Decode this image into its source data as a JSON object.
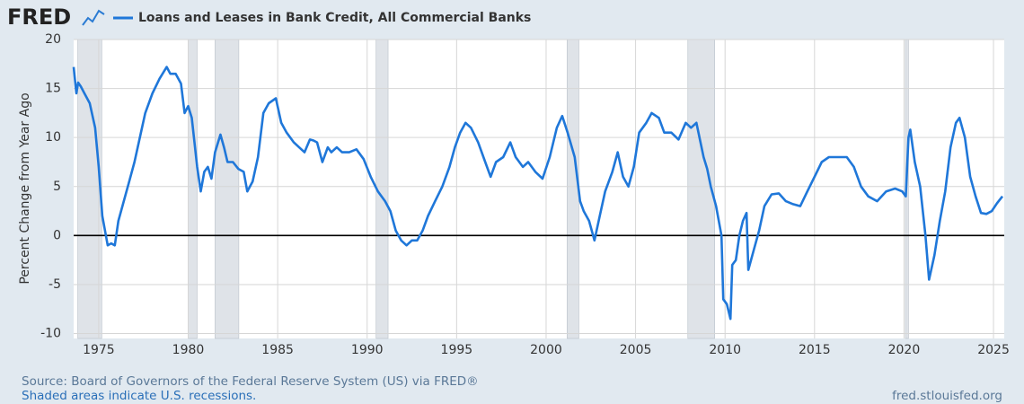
{
  "chart_data": {
    "type": "line",
    "brand": "FRED",
    "y_label": "Percent Change from Year Ago",
    "source": "Source: Board of Governors of the Federal Reserve System (US) via FRED®",
    "note": "Shaded areas indicate U.S. recessions.",
    "website": "fred.stlouisfed.org",
    "xlim": [
      1973.6,
      2025.6
    ],
    "xticks": [
      1975,
      1980,
      1985,
      1990,
      1995,
      2000,
      2005,
      2010,
      2015,
      2020,
      2025
    ],
    "ylim": [
      -10.5,
      20
    ],
    "yticks": [
      -10,
      -5,
      0,
      5,
      10,
      15,
      20
    ],
    "grid": true,
    "recession_color": "#dfe3e8",
    "recessions": [
      [
        1973.83,
        1975.17
      ],
      [
        1980.0,
        1980.5
      ],
      [
        1981.5,
        1982.83
      ],
      [
        1990.5,
        1991.17
      ],
      [
        2001.17,
        2001.83
      ],
      [
        2007.92,
        2009.42
      ],
      [
        2020.08,
        2020.25
      ]
    ],
    "x": [
      1973.6,
      1973.75,
      1973.85,
      1974.0,
      1974.2,
      1974.5,
      1974.8,
      1975.0,
      1975.2,
      1975.5,
      1975.7,
      1975.9,
      1976.1,
      1976.4,
      1976.7,
      1977.0,
      1977.3,
      1977.6,
      1978.0,
      1978.4,
      1978.8,
      1979.0,
      1979.3,
      1979.6,
      1979.8,
      1980.0,
      1980.2,
      1980.5,
      1980.7,
      1980.9,
      1981.1,
      1981.3,
      1981.5,
      1981.8,
      1982.0,
      1982.2,
      1982.5,
      1982.8,
      1983.1,
      1983.3,
      1983.6,
      1983.9,
      1984.2,
      1984.5,
      1984.9,
      1985.2,
      1985.5,
      1985.9,
      1986.2,
      1986.5,
      1986.8,
      1987.0,
      1987.2,
      1987.5,
      1987.8,
      1988.0,
      1988.3,
      1988.6,
      1989.0,
      1989.4,
      1989.8,
      1990.2,
      1990.6,
      1991.0,
      1991.3,
      1991.6,
      1991.9,
      1992.2,
      1992.5,
      1992.8,
      1993.1,
      1993.4,
      1993.8,
      1994.2,
      1994.6,
      1994.9,
      1995.2,
      1995.5,
      1995.8,
      1996.2,
      1996.6,
      1996.9,
      1997.2,
      1997.6,
      1998.0,
      1998.3,
      1998.7,
      1999.0,
      1999.4,
      1999.8,
      2000.2,
      2000.6,
      2000.9,
      2001.2,
      2001.6,
      2001.9,
      2002.1,
      2002.4,
      2002.7,
      2003.0,
      2003.3,
      2003.7,
      2004.0,
      2004.3,
      2004.6,
      2004.9,
      2005.2,
      2005.6,
      2005.9,
      2006.3,
      2006.6,
      2007.0,
      2007.4,
      2007.8,
      2008.1,
      2008.4,
      2008.8,
      2009.0,
      2009.2,
      2009.5,
      2009.8,
      2009.9,
      2010.1,
      2010.3,
      2010.4,
      2010.6,
      2010.8,
      2011.0,
      2011.2,
      2011.3,
      2011.6,
      2011.9,
      2012.2,
      2012.6,
      2013.0,
      2013.4,
      2013.8,
      2014.2,
      2014.6,
      2015.0,
      2015.4,
      2015.8,
      2016.2,
      2016.8,
      2017.2,
      2017.6,
      2018.0,
      2018.5,
      2019.0,
      2019.5,
      2019.9,
      2020.1,
      2020.25,
      2020.35,
      2020.6,
      2020.9,
      2021.2,
      2021.4,
      2021.7,
      2022.0,
      2022.3,
      2022.6,
      2022.9,
      2023.1,
      2023.4,
      2023.7,
      2024.0,
      2024.3,
      2024.6,
      2024.9,
      2025.2,
      2025.5
    ],
    "series": [
      {
        "name": "Loans and Leases in Bank Credit, All Commercial Banks",
        "color": "#1f77d9",
        "values": [
          17.2,
          14.5,
          15.6,
          15.2,
          14.5,
          13.5,
          11,
          7,
          2,
          -1,
          -0.8,
          -1,
          1.5,
          3.5,
          5.5,
          7.5,
          10,
          12.5,
          14.5,
          16,
          17.2,
          16.5,
          16.5,
          15.5,
          12.5,
          13.2,
          12,
          7,
          4.5,
          6.5,
          7,
          5.8,
          8.5,
          10.3,
          9,
          7.5,
          7.5,
          6.8,
          6.5,
          4.5,
          5.5,
          8,
          12.5,
          13.5,
          14,
          11.5,
          10.5,
          9.5,
          9,
          8.5,
          9.8,
          9.7,
          9.5,
          7.5,
          9,
          8.5,
          9,
          8.5,
          8.5,
          8.8,
          7.8,
          6,
          4.5,
          3.5,
          2.5,
          0.5,
          -0.5,
          -1,
          -0.5,
          -0.5,
          0.5,
          2,
          3.5,
          5,
          7,
          9,
          10.5,
          11.5,
          11,
          9.5,
          7.5,
          6,
          7.5,
          8,
          9.5,
          8,
          7,
          7.5,
          6.5,
          5.8,
          8,
          11,
          12.2,
          10.5,
          8,
          3.5,
          2.5,
          1.5,
          -0.5,
          2,
          4.5,
          6.5,
          8.5,
          6,
          5,
          7,
          10.5,
          11.5,
          12.5,
          12,
          10.5,
          10.5,
          9.8,
          11.5,
          11,
          11.5,
          8,
          6.8,
          5,
          3,
          0,
          -6.5,
          -7,
          -8.5,
          -3,
          -2.5,
          0,
          1.5,
          2.3,
          -3.5,
          -1.5,
          0.5,
          3,
          4.2,
          4.3,
          3.5,
          3.2,
          3,
          4.5,
          6,
          7.5,
          8,
          8,
          8,
          7,
          5,
          4,
          3.5,
          4.5,
          4.8,
          4.5,
          4,
          10,
          10.8,
          7.5,
          5,
          0,
          -4.5,
          -2,
          1.5,
          4.5,
          9,
          11.5,
          12,
          10,
          6,
          4,
          2.3,
          2.2,
          2.5,
          3.3,
          4
        ]
      }
    ]
  }
}
